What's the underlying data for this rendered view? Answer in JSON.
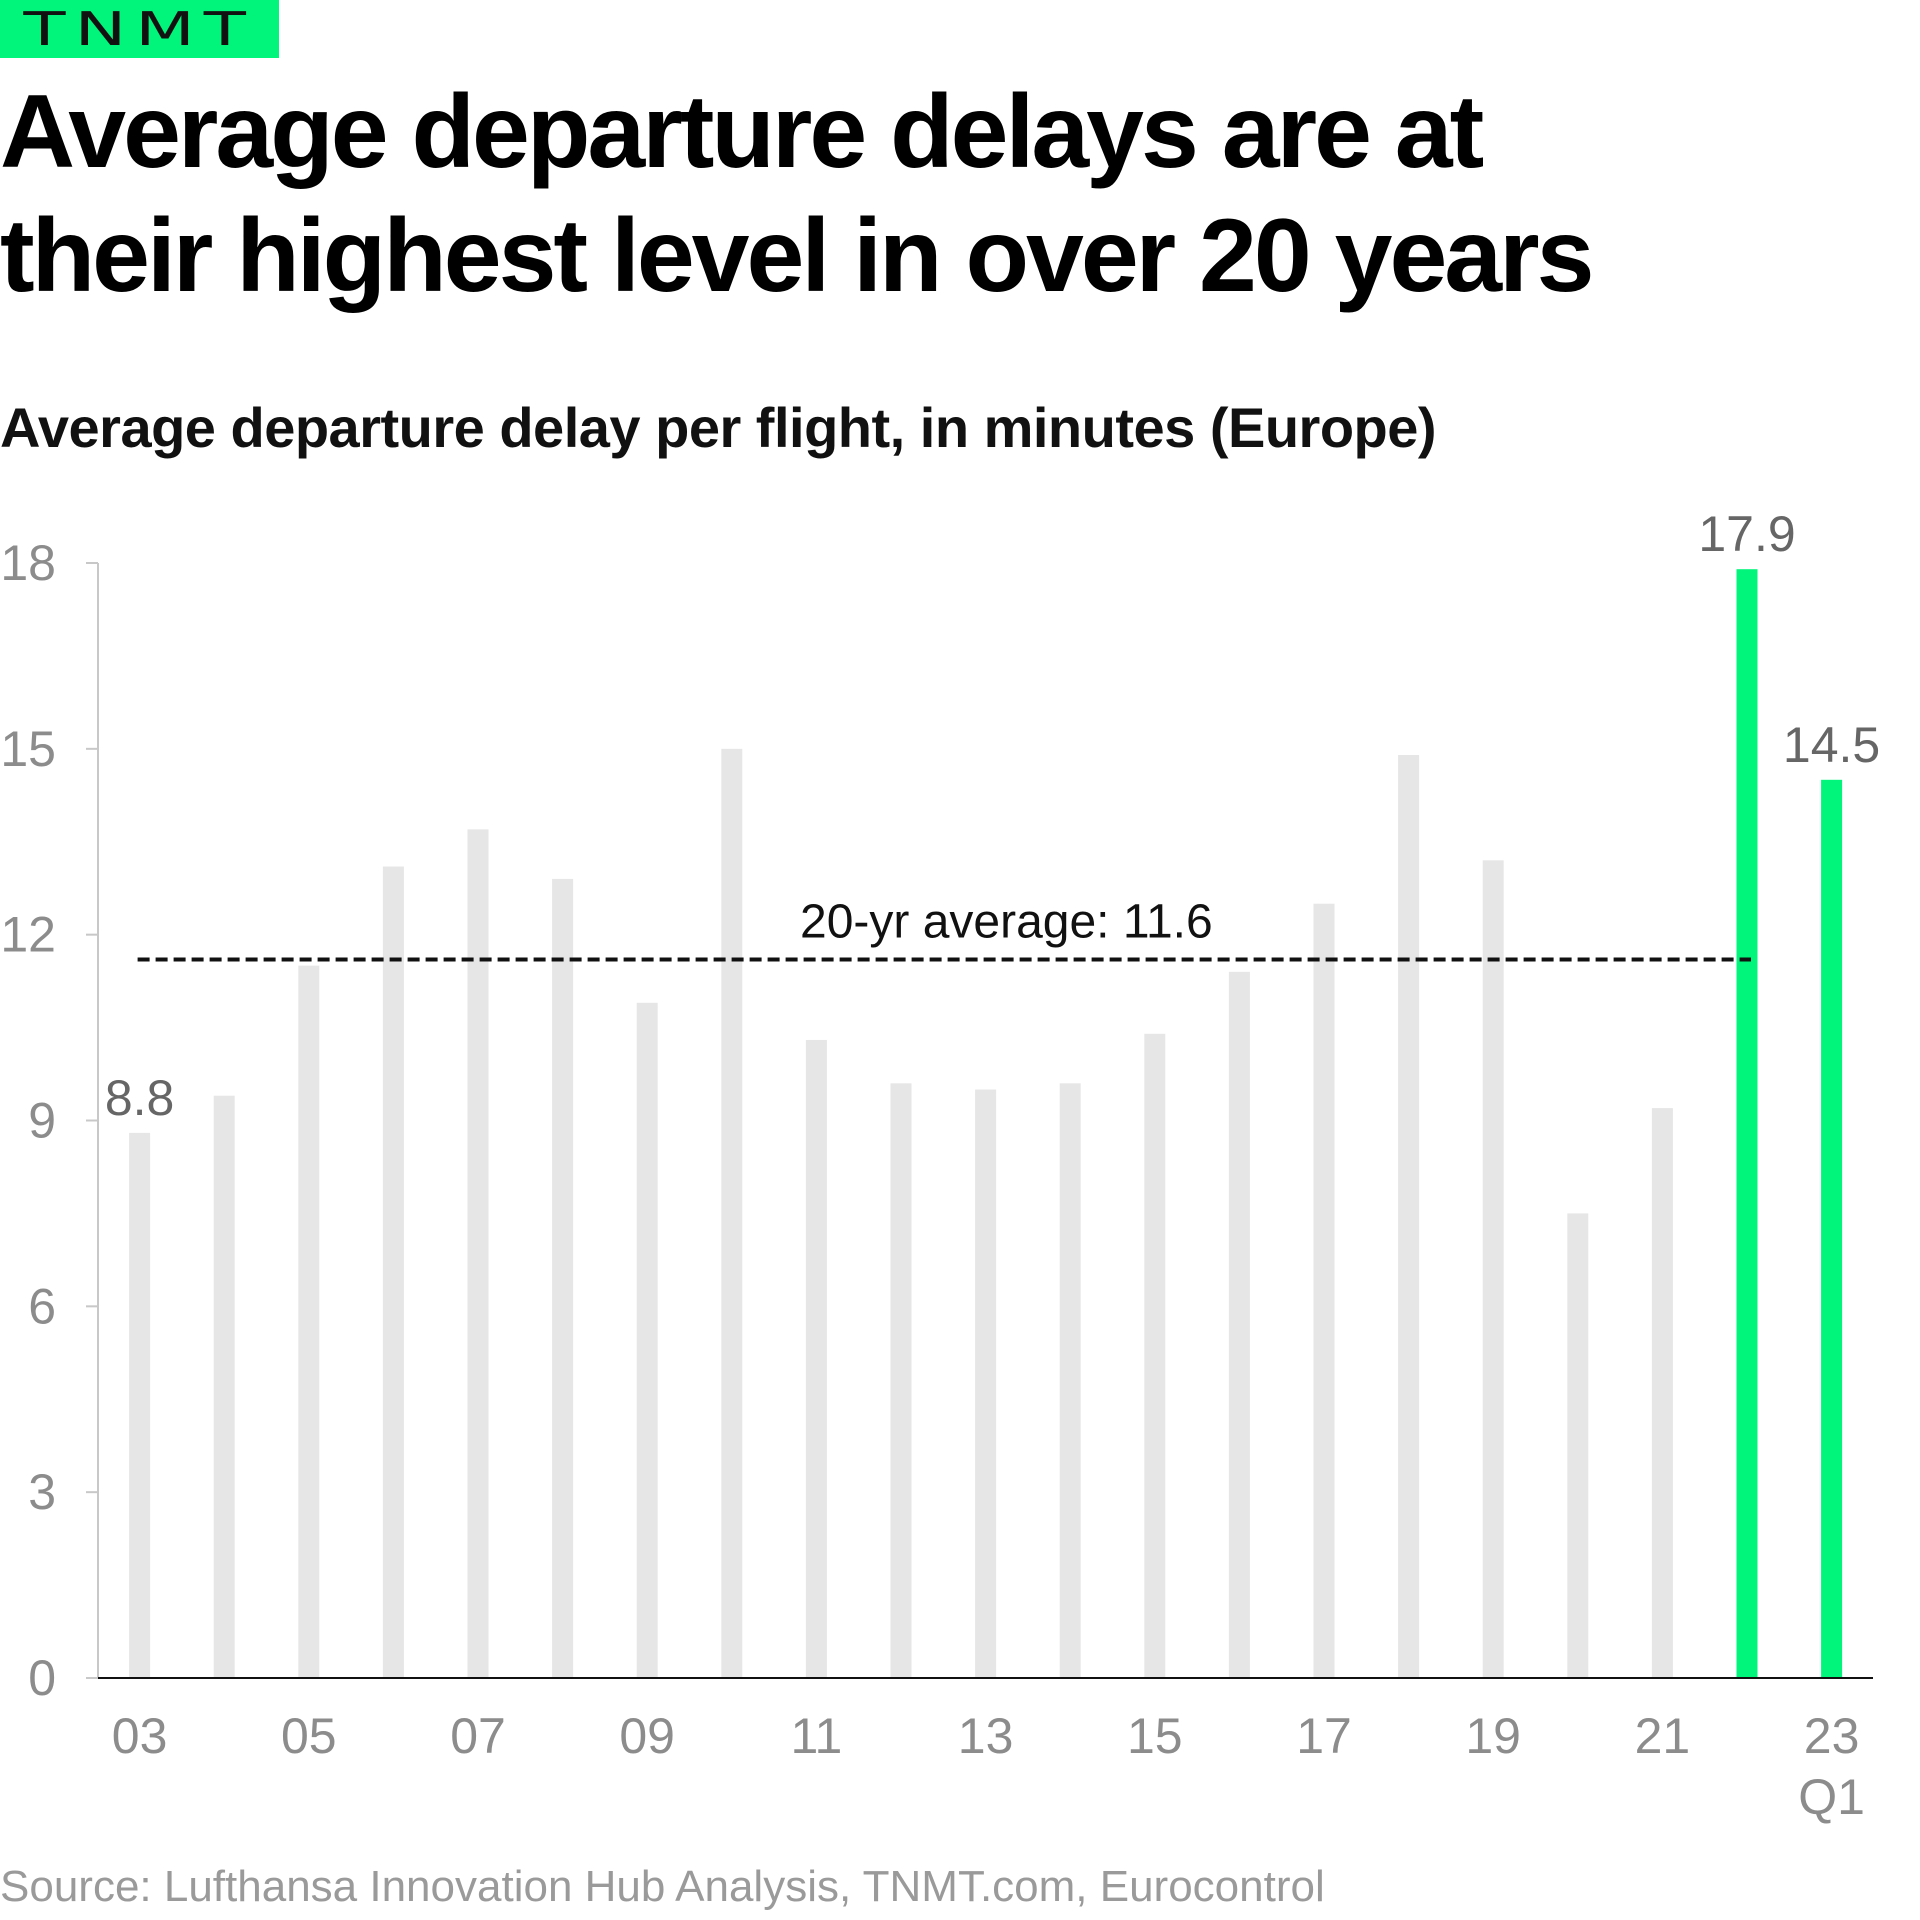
{
  "brand": {
    "logo_text": "TNMT",
    "color": "#00f57a"
  },
  "title": [
    "Average departure delays are at",
    "their highest level in over 20 years"
  ],
  "source": "Source: Lufthansa Innovation Hub Analysis, TNMT.com, Eurocontrol",
  "chart_data": {
    "type": "bar",
    "title": "Average departure delay per flight, in minutes (Europe)",
    "xlabel": "",
    "ylabel": "",
    "ylim": [
      0,
      18
    ],
    "y_ticks": [
      "0",
      "3",
      "6",
      "9",
      "12",
      "15",
      "18"
    ],
    "grid": false,
    "categories": [
      "03",
      "04",
      "05",
      "06",
      "07",
      "08",
      "09",
      "10",
      "11",
      "12",
      "13",
      "14",
      "15",
      "16",
      "17",
      "18",
      "19",
      "20",
      "21",
      "22",
      "23 Q1"
    ],
    "x_tick_labels": [
      {
        "category": "03",
        "text": "03"
      },
      {
        "category": "05",
        "text": "05"
      },
      {
        "category": "07",
        "text": "07"
      },
      {
        "category": "09",
        "text": "09"
      },
      {
        "category": "11",
        "text": "11"
      },
      {
        "category": "13",
        "text": "13"
      },
      {
        "category": "15",
        "text": "15"
      },
      {
        "category": "17",
        "text": "17"
      },
      {
        "category": "19",
        "text": "19"
      },
      {
        "category": "21",
        "text": "21"
      },
      {
        "category": "23 Q1",
        "text": "23",
        "subtext": "Q1"
      }
    ],
    "values": [
      8.8,
      9.4,
      11.5,
      13.1,
      13.7,
      12.9,
      10.9,
      15.0,
      10.3,
      9.6,
      9.5,
      9.6,
      10.4,
      11.4,
      12.5,
      14.9,
      13.2,
      7.5,
      9.2,
      17.9,
      14.5
    ],
    "highlighted": [
      "22",
      "23 Q1"
    ],
    "data_labels": [
      {
        "category": "03",
        "text": "8.8"
      },
      {
        "category": "22",
        "text": "17.9"
      },
      {
        "category": "23 Q1",
        "text": "14.5"
      }
    ],
    "reference_line": {
      "value": 11.6,
      "label": "20-yr average: 11.6",
      "style": "dashed"
    },
    "colors": {
      "default": "#e6e6e6",
      "highlight": "#00f57a",
      "reference": "#111111"
    }
  }
}
